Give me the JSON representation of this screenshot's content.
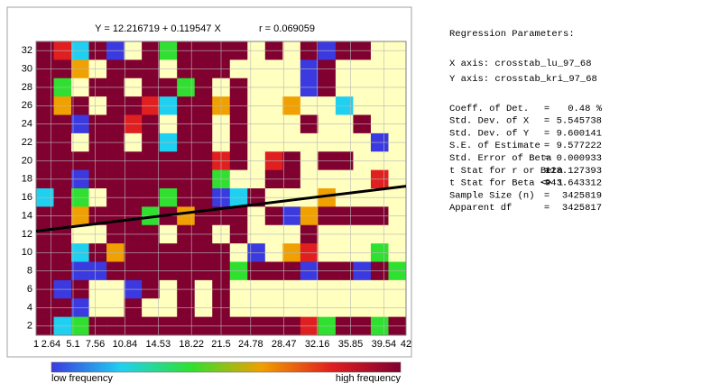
{
  "chart_data": {
    "type": "heatmap",
    "title_equation": "Y = 12.216719 + 0.119547 X",
    "title_r": "r = 0.069059",
    "intercept": 12.216719,
    "slope": 0.119547,
    "xlim": [
      1,
      42
    ],
    "ylim": [
      1,
      33
    ],
    "xticks": [
      1,
      2.64,
      5.1,
      7.56,
      10.84,
      14.53,
      18.22,
      21.5,
      24.78,
      28.47,
      32.16,
      35.85,
      39.54,
      42
    ],
    "yticks": [
      2,
      4,
      6,
      8,
      10,
      12,
      14,
      16,
      18,
      20,
      22,
      24,
      26,
      28,
      30,
      32
    ],
    "grid": true,
    "colors": [
      "#ffffc0",
      "#3a3ae0",
      "#20d0f0",
      "#30e030",
      "#f0a000",
      "#e02020",
      "#800030"
    ],
    "cells": [
      [
        6,
        5,
        2,
        6,
        1,
        0,
        6,
        3,
        6,
        6,
        6,
        6,
        0,
        6,
        0,
        6,
        1,
        6,
        6,
        0,
        0
      ],
      [
        6,
        6,
        4,
        0,
        6,
        6,
        6,
        0,
        6,
        6,
        6,
        0,
        0,
        0,
        0,
        1,
        6,
        0,
        0,
        0,
        0
      ],
      [
        6,
        3,
        0,
        6,
        6,
        0,
        6,
        6,
        3,
        6,
        0,
        6,
        0,
        0,
        0,
        1,
        6,
        0,
        0,
        0,
        0
      ],
      [
        6,
        4,
        6,
        0,
        6,
        6,
        5,
        2,
        6,
        6,
        4,
        6,
        0,
        0,
        4,
        0,
        0,
        2,
        0,
        0,
        0
      ],
      [
        6,
        6,
        1,
        6,
        6,
        5,
        6,
        0,
        6,
        6,
        0,
        6,
        0,
        0,
        0,
        6,
        0,
        0,
        6,
        0,
        0
      ],
      [
        6,
        6,
        0,
        6,
        6,
        0,
        6,
        2,
        6,
        6,
        0,
        6,
        0,
        0,
        0,
        0,
        0,
        0,
        0,
        1,
        0
      ],
      [
        6,
        6,
        6,
        6,
        6,
        6,
        6,
        6,
        6,
        6,
        5,
        6,
        0,
        5,
        6,
        0,
        6,
        6,
        0,
        0,
        0
      ],
      [
        6,
        6,
        1,
        6,
        6,
        6,
        6,
        6,
        6,
        6,
        3,
        0,
        0,
        6,
        6,
        0,
        0,
        0,
        0,
        5,
        0
      ],
      [
        2,
        6,
        3,
        0,
        6,
        6,
        6,
        3,
        6,
        6,
        1,
        2,
        6,
        0,
        0,
        0,
        4,
        0,
        0,
        0,
        0
      ],
      [
        6,
        6,
        4,
        6,
        6,
        6,
        3,
        6,
        4,
        6,
        6,
        6,
        0,
        6,
        1,
        4,
        6,
        6,
        6,
        6,
        0
      ],
      [
        6,
        6,
        0,
        0,
        6,
        6,
        6,
        0,
        6,
        6,
        0,
        6,
        0,
        0,
        0,
        6,
        0,
        0,
        0,
        0,
        0
      ],
      [
        6,
        6,
        2,
        6,
        4,
        6,
        6,
        6,
        6,
        6,
        6,
        0,
        1,
        0,
        4,
        5,
        0,
        0,
        0,
        3,
        0
      ],
      [
        6,
        6,
        1,
        1,
        6,
        6,
        6,
        6,
        6,
        6,
        6,
        3,
        6,
        6,
        6,
        1,
        6,
        6,
        1,
        6,
        3
      ],
      [
        6,
        1,
        6,
        0,
        0,
        1,
        6,
        0,
        6,
        0,
        6,
        0,
        0,
        0,
        0,
        0,
        0,
        0,
        0,
        0,
        0
      ],
      [
        6,
        6,
        1,
        0,
        0,
        6,
        0,
        0,
        6,
        0,
        6,
        0,
        0,
        0,
        0,
        0,
        0,
        0,
        0,
        0,
        0
      ],
      [
        6,
        2,
        3,
        6,
        6,
        6,
        6,
        6,
        6,
        6,
        6,
        6,
        6,
        6,
        6,
        5,
        3,
        6,
        6,
        3,
        6
      ]
    ],
    "colorbar_low": "low frequency",
    "colorbar_high": "high frequency"
  },
  "panel": {
    "title": "Regression Parameters:",
    "x_axis": "X axis: crosstab_lu_97_68",
    "y_axis": "Y axis: crosstab_kri_97_68",
    "rows": [
      [
        "Coeff. of Det.",
        "=",
        "0.48 %"
      ],
      [
        "Std. Dev. of X",
        "=",
        "5.545738"
      ],
      [
        "Std. Dev. of Y",
        "=",
        "9.600141"
      ],
      [
        "S.E. of Estimate",
        "=",
        "9.577222"
      ],
      [
        "Std. Error of Beta",
        "=",
        "0.000933"
      ],
      [
        "t Stat for r or Beta",
        "=",
        "128.127393"
      ],
      [
        "t Stat for Beta <> 1",
        "=",
        "-943.643312"
      ],
      [
        "Sample Size (n)",
        "=",
        "3425819"
      ],
      [
        "Apparent df",
        "=",
        "3425817"
      ]
    ]
  }
}
